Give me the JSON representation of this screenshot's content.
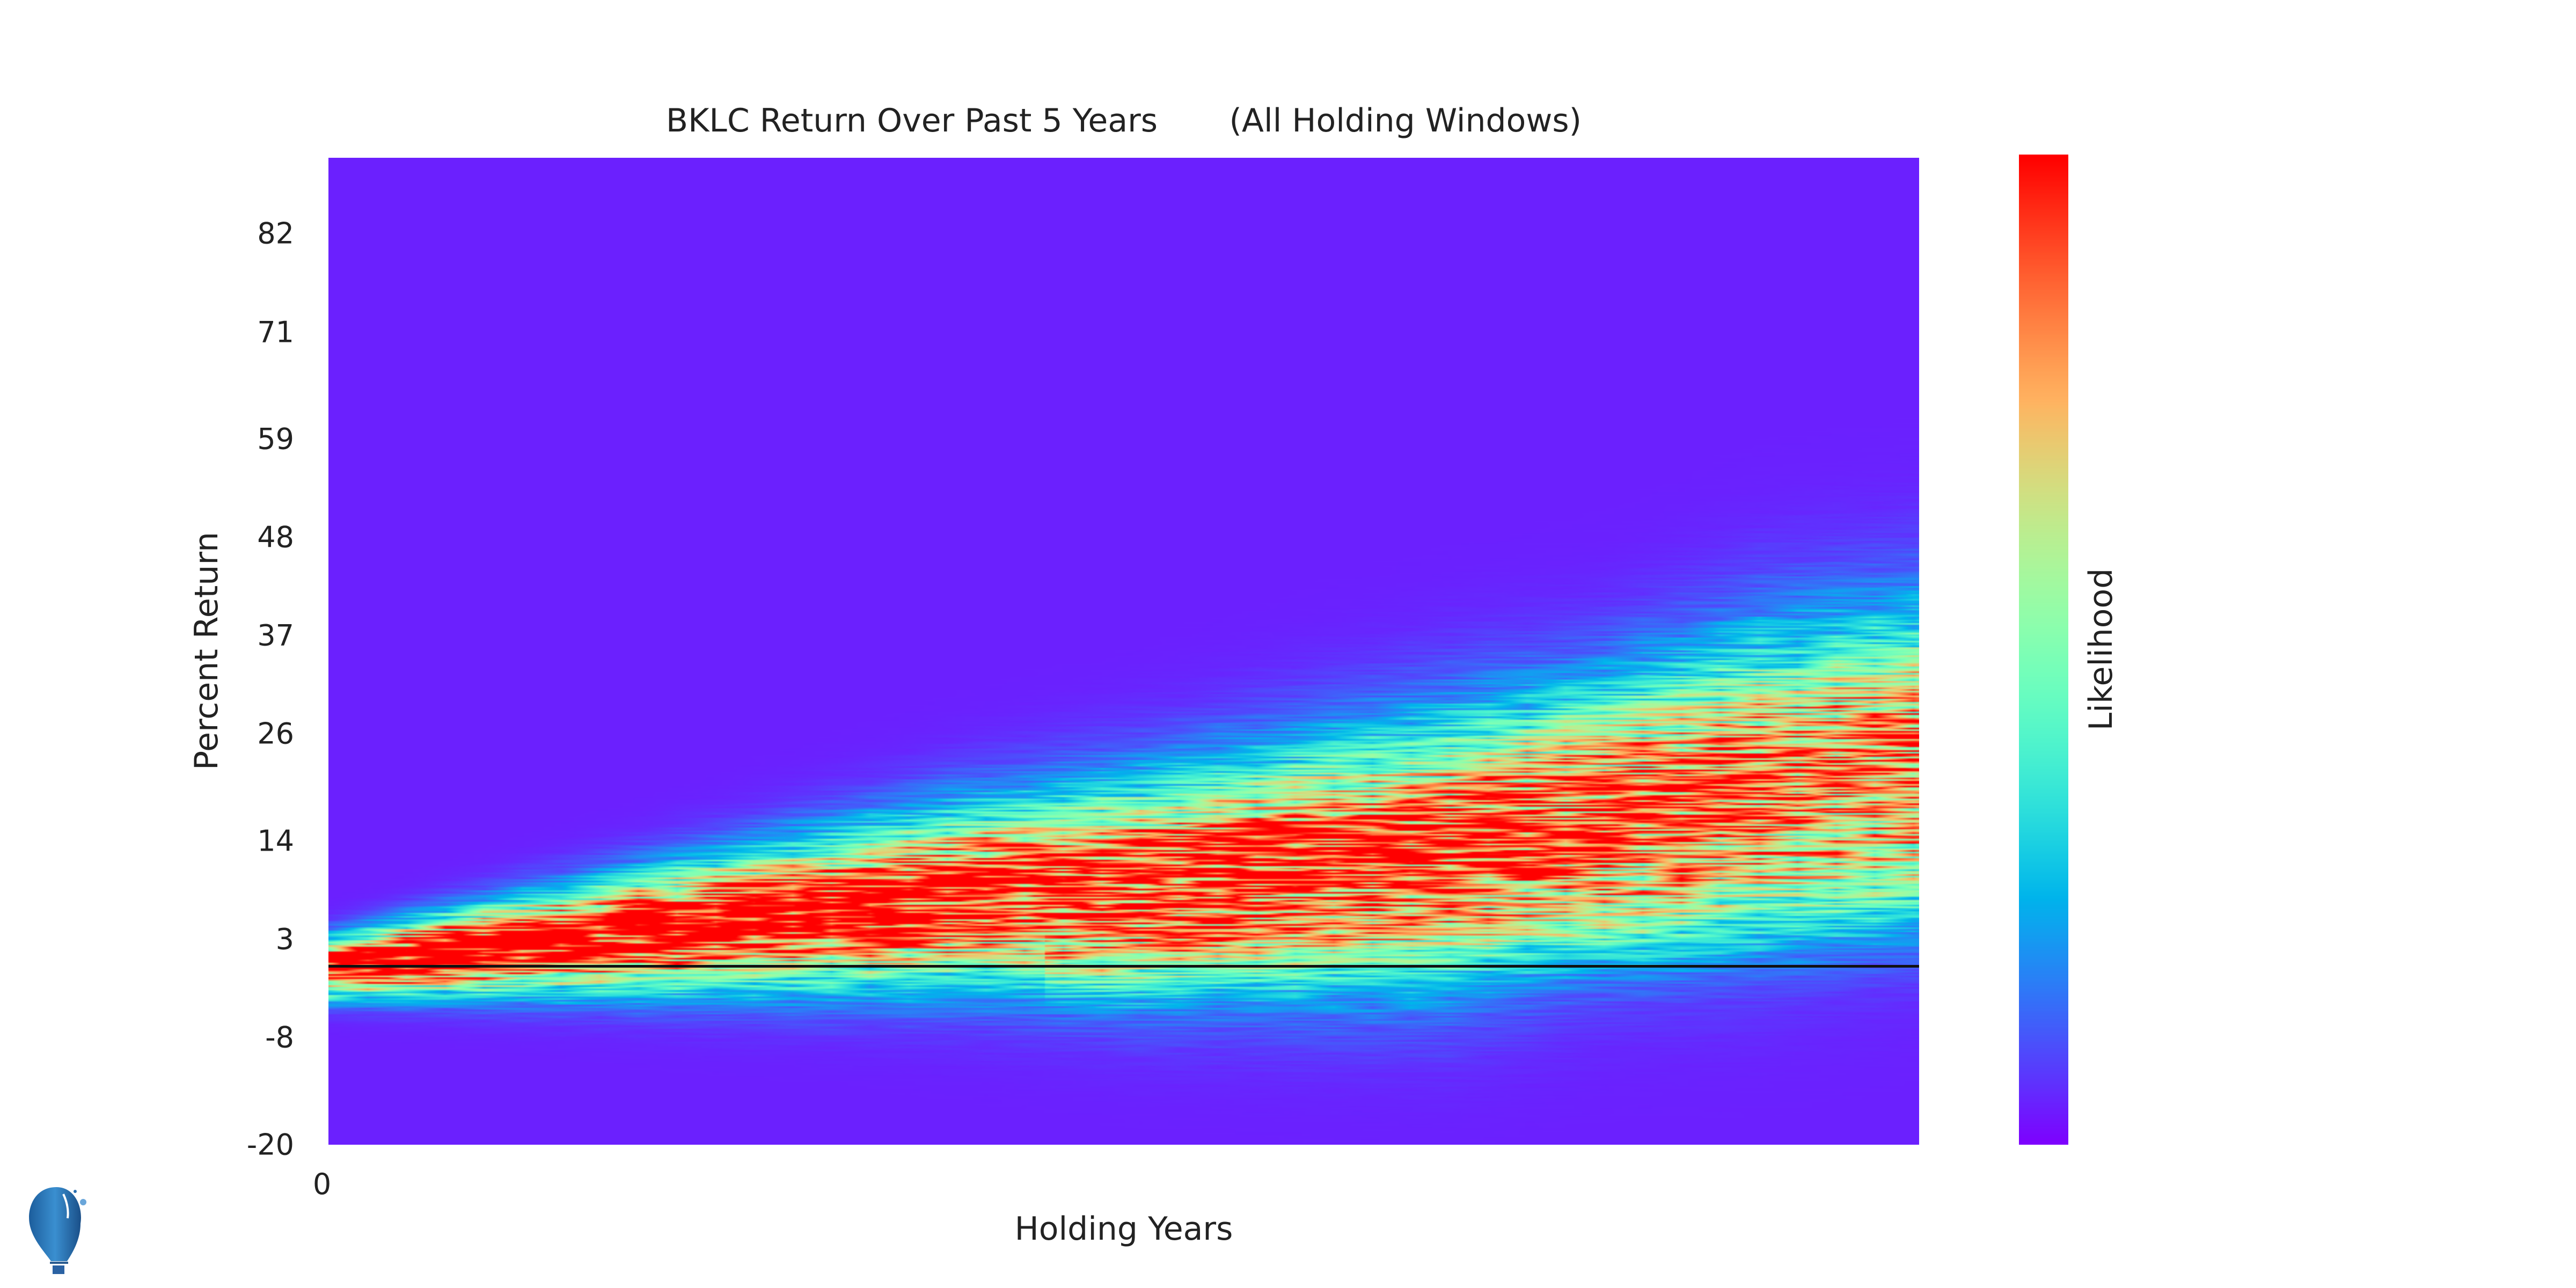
{
  "chart_data": {
    "type": "heatmap",
    "title": "BKLC Return Over Past 5 Years       (All Holding Windows)",
    "xlabel": "Holding Years",
    "ylabel": "Percent Return",
    "colorbar_label": "Likelihood",
    "colormap": "rainbow",
    "x_ticks": [
      "0"
    ],
    "xlim": [
      0,
      5
    ],
    "y_ticks": [
      "82",
      "71",
      "59",
      "48",
      "37",
      "26",
      "14",
      "3",
      "-8",
      "-20"
    ],
    "y_tick_values": [
      82,
      71,
      59,
      48,
      37,
      26,
      14,
      3,
      -8,
      -20
    ],
    "ylim": [
      -20,
      90.5
    ],
    "reference_line_y": 0,
    "grid": false,
    "ridge": {
      "years": [
        0,
        0.5,
        1,
        1.5,
        2,
        2.5,
        3,
        3.5,
        4,
        4.5,
        5
      ],
      "peak_return": [
        0,
        2,
        4,
        6,
        8,
        9,
        11,
        13,
        17,
        21,
        24
      ],
      "secondary_return": [
        null,
        null,
        null,
        null,
        null,
        4,
        6,
        8,
        10,
        13,
        15
      ],
      "spread": [
        2,
        3,
        4,
        5,
        6,
        7,
        8,
        9,
        9,
        10,
        10
      ]
    }
  },
  "colors": {
    "background_cell": "#6a2aff",
    "zero_line": "#111111"
  }
}
